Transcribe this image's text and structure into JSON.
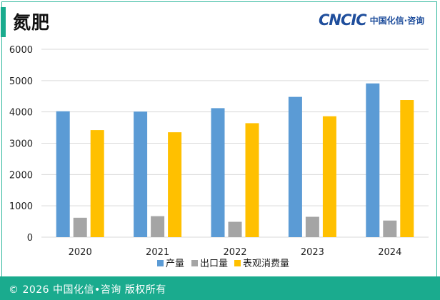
{
  "header": {
    "title": "氮肥",
    "logo_mark": "CNCIC",
    "logo_text": "中国化信·咨询"
  },
  "footer": {
    "text": "© 2026 中国化信•咨询  版权所有"
  },
  "colors": {
    "accent": "#1aab8e",
    "series": [
      "#5b9bd5",
      "#a5a5a5",
      "#ffc000"
    ]
  },
  "chart_data": {
    "type": "bar",
    "categories": [
      "2020",
      "2021",
      "2022",
      "2023",
      "2024"
    ],
    "series": [
      {
        "name": "产量",
        "values": [
          4020,
          4010,
          4120,
          4480,
          4910
        ]
      },
      {
        "name": "出口量",
        "values": [
          620,
          670,
          490,
          650,
          530
        ]
      },
      {
        "name": "表观消费量",
        "values": [
          3420,
          3350,
          3640,
          3860,
          4380
        ]
      }
    ],
    "ylim": [
      0,
      6000
    ],
    "yticks": [
      0,
      1000,
      2000,
      3000,
      4000,
      5000,
      6000
    ],
    "grid": true,
    "legend": "bottom",
    "title": "",
    "xlabel": "",
    "ylabel": ""
  }
}
